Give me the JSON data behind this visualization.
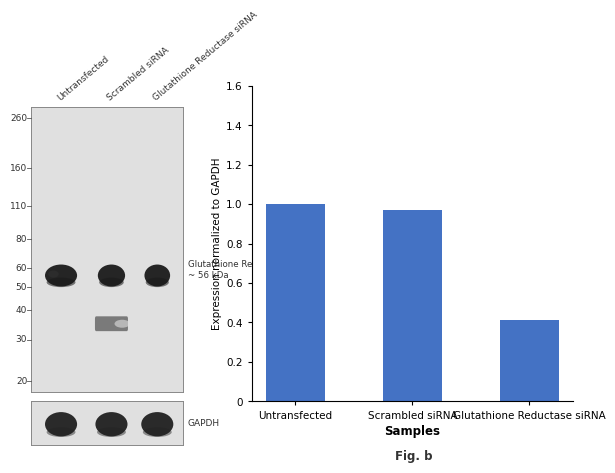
{
  "bar_categories": [
    "Untransfected",
    "Scrambled siRNA",
    "Glutathione Reductase siRNA"
  ],
  "bar_values": [
    1.0,
    0.97,
    0.41
  ],
  "bar_color": "#4472C4",
  "ylabel": "Expression normalized to GAPDH",
  "xlabel": "Samples",
  "ylim": [
    0,
    1.6
  ],
  "yticks": [
    0,
    0.2,
    0.4,
    0.6,
    0.8,
    1.0,
    1.2,
    1.4,
    1.6
  ],
  "fig_caption": "Fig. b",
  "background_color": "#ffffff",
  "wb_background": "#e0e0e0",
  "mw_markers": [
    260,
    160,
    110,
    80,
    60,
    50,
    40,
    30,
    20
  ],
  "lane_labels": [
    "Untransfected",
    "Scrambled siRNA",
    "Glutathione Reductase siRNA"
  ],
  "band_label_main": "Glutathione Reductase\n~ 56 kDa",
  "band_label_gapdh": "GAPDH",
  "mw_log_min": 18,
  "mw_log_max": 290
}
